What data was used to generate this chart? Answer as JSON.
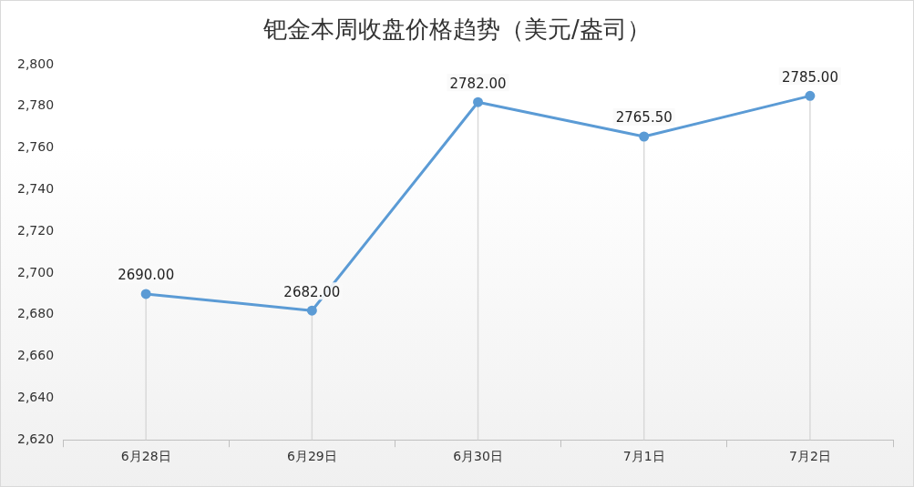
{
  "chart_data": {
    "type": "line",
    "title": "钯金本周收盘价格趋势（美元/盎司）",
    "categories": [
      "6月28日",
      "6月29日",
      "6月30日",
      "7月1日",
      "7月2日"
    ],
    "series": [
      {
        "color": "#5b9bd5",
        "values": [
          2690,
          2682,
          2782,
          2765.5,
          2785
        ]
      }
    ],
    "value_labels": [
      "2690.00",
      "2682.00",
      "2782.00",
      "2765.50",
      "2785.00"
    ],
    "ylim": [
      2620,
      2800
    ],
    "yticks": [
      {
        "value": 2620,
        "label": "2,620"
      },
      {
        "value": 2640,
        "label": "2,640"
      },
      {
        "value": 2660,
        "label": "2,660"
      },
      {
        "value": 2680,
        "label": "2,680"
      },
      {
        "value": 2700,
        "label": "2,700"
      },
      {
        "value": 2720,
        "label": "2,720"
      },
      {
        "value": 2740,
        "label": "2,740"
      },
      {
        "value": 2760,
        "label": "2,760"
      },
      {
        "value": 2780,
        "label": "2,780"
      },
      {
        "value": 2800,
        "label": "2,800"
      }
    ],
    "grid": "x",
    "legend": false,
    "marker": "circle",
    "line_style": "solid"
  }
}
